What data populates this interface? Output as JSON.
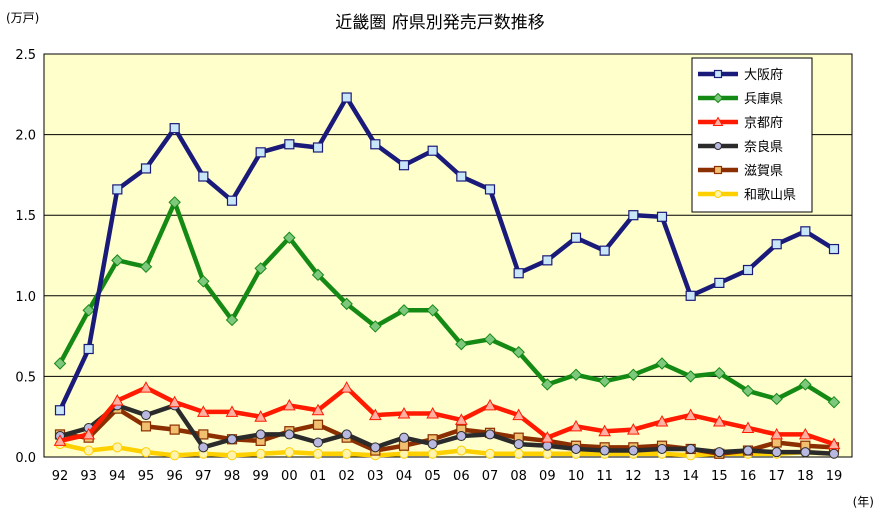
{
  "chart_data": {
    "type": "line",
    "title": "近畿圏 府県別発売戸数推移",
    "ylabel": "(万戸)",
    "xlabel": "(年)",
    "ylim": [
      0,
      2.5
    ],
    "yticks": [
      "0.0",
      "0.5",
      "1.0",
      "1.5",
      "2.0",
      "2.5"
    ],
    "grid": true,
    "legend_position": "top-right",
    "categories": [
      "92",
      "93",
      "94",
      "95",
      "96",
      "97",
      "98",
      "99",
      "00",
      "01",
      "02",
      "03",
      "04",
      "05",
      "06",
      "07",
      "08",
      "09",
      "10",
      "11",
      "12",
      "13",
      "14",
      "15",
      "16",
      "17",
      "18",
      "19"
    ],
    "series": [
      {
        "name": "大阪府",
        "color": "#1a1a7a",
        "marker": "square",
        "marker_fill": "#c8e6f8",
        "values": [
          0.29,
          0.67,
          1.66,
          1.79,
          2.04,
          1.74,
          1.59,
          1.89,
          1.94,
          1.92,
          2.23,
          1.94,
          1.81,
          1.9,
          1.74,
          1.66,
          1.14,
          1.22,
          1.36,
          1.28,
          1.5,
          1.49,
          1.0,
          1.08,
          1.16,
          1.32,
          1.4,
          1.29
        ]
      },
      {
        "name": "兵庫県",
        "color": "#148a14",
        "marker": "diamond",
        "marker_fill": "#7ec87e",
        "values": [
          0.58,
          0.91,
          1.22,
          1.18,
          1.58,
          1.09,
          0.85,
          1.17,
          1.36,
          1.13,
          0.95,
          0.81,
          0.91,
          0.91,
          0.7,
          0.73,
          0.65,
          0.45,
          0.51,
          0.47,
          0.51,
          0.58,
          0.5,
          0.52,
          0.41,
          0.36,
          0.45,
          0.34
        ]
      },
      {
        "name": "京都府",
        "color": "#ff1a00",
        "marker": "triangle",
        "marker_fill": "#ffb0a0",
        "values": [
          0.1,
          0.14,
          0.35,
          0.43,
          0.34,
          0.28,
          0.28,
          0.25,
          0.32,
          0.29,
          0.43,
          0.26,
          0.27,
          0.27,
          0.23,
          0.32,
          0.26,
          0.12,
          0.19,
          0.16,
          0.17,
          0.22,
          0.26,
          0.22,
          0.18,
          0.14,
          0.14,
          0.08
        ]
      },
      {
        "name": "奈良県",
        "color": "#2b2b2b",
        "marker": "circle",
        "marker_fill": "#b8b8e0",
        "values": [
          0.13,
          0.18,
          0.32,
          0.26,
          0.32,
          0.06,
          0.11,
          0.14,
          0.14,
          0.09,
          0.14,
          0.06,
          0.12,
          0.08,
          0.13,
          0.14,
          0.08,
          0.07,
          0.05,
          0.04,
          0.04,
          0.05,
          0.05,
          0.03,
          0.04,
          0.03,
          0.03,
          0.02
        ]
      },
      {
        "name": "滋賀県",
        "color": "#8b2e00",
        "marker": "square",
        "marker_fill": "#f0c070",
        "values": [
          0.14,
          0.12,
          0.3,
          0.19,
          0.17,
          0.14,
          0.11,
          0.1,
          0.16,
          0.2,
          0.12,
          0.04,
          0.07,
          0.11,
          0.17,
          0.15,
          0.12,
          0.1,
          0.07,
          0.06,
          0.06,
          0.07,
          0.05,
          0.02,
          0.04,
          0.09,
          0.07,
          0.06
        ]
      },
      {
        "name": "和歌山県",
        "color": "#ffd000",
        "marker": "circle",
        "marker_fill": "#fff3b0",
        "values": [
          0.08,
          0.04,
          0.06,
          0.03,
          0.01,
          0.02,
          0.01,
          0.02,
          0.03,
          0.02,
          0.02,
          0.01,
          0.02,
          0.02,
          0.04,
          0.02,
          0.02,
          0.02,
          0.02,
          0.02,
          0.02,
          0.02,
          0.01,
          0.02,
          0.02,
          0.02,
          0.03,
          0.02
        ]
      }
    ]
  }
}
